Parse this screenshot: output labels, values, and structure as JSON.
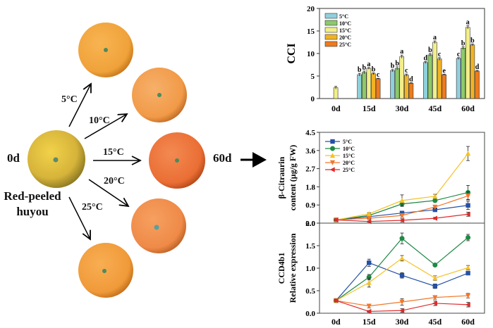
{
  "diagram": {
    "start_label": "0d",
    "end_label": "60d",
    "fruit_name_line1": "Red-peeled",
    "fruit_name_line2": "huyou",
    "treatments": [
      "5°C",
      "10°C",
      "15°C",
      "20°C",
      "25°C"
    ],
    "fruit_colors": {
      "initial": "#d6b33a",
      "5C": "#f0a23a",
      "10C": "#f19a48",
      "15C": "#ea6e34",
      "20C": "#ef8a48",
      "25C": "#f09a3a"
    }
  },
  "chart_data": [
    {
      "type": "bar",
      "title": "",
      "xlabel": "",
      "ylabel": "CCI",
      "ylim": [
        0,
        20
      ],
      "yticks": [
        0,
        5,
        10,
        15,
        20
      ],
      "categories": [
        "0d",
        "15d",
        "30d",
        "45d",
        "60d"
      ],
      "legend_position": "top-left",
      "series": [
        {
          "name": "5°C",
          "color": "#8fd0dc",
          "values": [
            null,
            5.3,
            6.2,
            8.0,
            8.9
          ],
          "errors": [
            null,
            0.3,
            0.25,
            0.2,
            0.2
          ],
          "letters": [
            null,
            "b",
            "b",
            "d",
            "c"
          ]
        },
        {
          "name": "10°C",
          "color": "#8cc96a",
          "values": [
            null,
            5.8,
            6.7,
            9.7,
            11.2
          ],
          "errors": [
            null,
            0.3,
            0.35,
            0.3,
            0.3
          ],
          "letters": [
            null,
            "b",
            "b",
            "b",
            "b"
          ]
        },
        {
          "name": "15°C",
          "color": "#f2ee8a",
          "values": [
            2.4,
            6.7,
            9.3,
            12.5,
            15.8
          ],
          "errors": [
            0.3,
            0.2,
            0.35,
            0.3,
            0.35
          ],
          "letters": [
            null,
            "a",
            "a",
            "a",
            "a"
          ]
        },
        {
          "name": "20°C",
          "color": "#f1b324",
          "values": [
            null,
            5.5,
            5.2,
            8.8,
            11.9
          ],
          "errors": [
            null,
            0.2,
            0.25,
            0.3,
            0.2
          ],
          "letters": [
            null,
            "b",
            "c",
            "c",
            "b"
          ]
        },
        {
          "name": "25°C",
          "color": "#ef7a1c",
          "values": [
            null,
            4.4,
            3.4,
            5.3,
            6.1
          ],
          "errors": [
            null,
            0.1,
            0.1,
            0.1,
            0.15
          ],
          "letters": [
            null,
            "c",
            "d",
            "e",
            "d"
          ]
        }
      ]
    },
    {
      "type": "line",
      "title": "",
      "xlabel": "",
      "ylabel_line1": "β-Citraurin",
      "ylabel_line2": "content (μg/g FW)",
      "ylim": [
        0,
        4.5
      ],
      "yticks": [
        "0.0",
        "0.9",
        "1.8",
        "2.7",
        "3.6",
        "4.5"
      ],
      "categories": [
        "0d",
        "15d",
        "30d",
        "45d",
        "60d"
      ],
      "legend_position": "top-left",
      "series": [
        {
          "name": "5°C",
          "color": "#2451a6",
          "marker": "square",
          "values": [
            0.15,
            0.32,
            0.5,
            0.66,
            0.88
          ],
          "errors": [
            0.05,
            0.05,
            0.06,
            0.05,
            0.2
          ]
        },
        {
          "name": "10°C",
          "color": "#1f8a45",
          "marker": "circle",
          "values": [
            0.16,
            0.38,
            0.95,
            1.12,
            1.52
          ],
          "errors": [
            0.05,
            0.06,
            0.12,
            0.08,
            0.35
          ]
        },
        {
          "name": "15°C",
          "color": "#f5c126",
          "marker": "triangle-up",
          "values": [
            0.16,
            0.46,
            1.12,
            1.33,
            3.45
          ],
          "errors": [
            0.05,
            0.06,
            0.28,
            0.1,
            0.35
          ]
        },
        {
          "name": "20°C",
          "color": "#f0782a",
          "marker": "triangle-down",
          "values": [
            0.16,
            0.24,
            0.38,
            0.8,
            1.35
          ],
          "errors": [
            0.05,
            0.05,
            0.08,
            0.08,
            0.2
          ]
        },
        {
          "name": "25°C",
          "color": "#e02a2a",
          "marker": "triangle-left",
          "values": [
            0.16,
            0.08,
            0.14,
            0.24,
            0.44
          ],
          "errors": [
            0.05,
            0.03,
            0.08,
            0.05,
            0.1
          ]
        }
      ]
    },
    {
      "type": "line",
      "title": "",
      "xlabel": "",
      "ylabel_line1": "CCD4b1",
      "ylabel_line2": "Relative expression",
      "ylim": [
        0,
        2.0
      ],
      "yticks": [
        "0.0",
        "0.5",
        "1.0",
        "1.5",
        "2.0"
      ],
      "categories": [
        "0d",
        "15d",
        "30d",
        "45d",
        "60d"
      ],
      "series": [
        {
          "name": "5°C",
          "color": "#2451a6",
          "marker": "square",
          "values": [
            0.28,
            1.12,
            0.84,
            0.6,
            0.89
          ],
          "errors": [
            0.03,
            0.08,
            0.06,
            0.05,
            0.04
          ]
        },
        {
          "name": "10°C",
          "color": "#1f8a45",
          "marker": "circle",
          "values": [
            0.28,
            0.8,
            1.66,
            1.07,
            1.68
          ],
          "errors": [
            0.03,
            0.06,
            0.12,
            0.02,
            0.07
          ]
        },
        {
          "name": "15°C",
          "color": "#f5c126",
          "marker": "triangle-up",
          "values": [
            0.28,
            0.68,
            1.22,
            0.78,
            1.01
          ],
          "errors": [
            0.03,
            0.1,
            0.06,
            0.05,
            0.05
          ]
        },
        {
          "name": "20°C",
          "color": "#f0782a",
          "marker": "triangle-down",
          "values": [
            0.28,
            0.16,
            0.25,
            0.35,
            0.39
          ],
          "errors": [
            0.03,
            0.04,
            0.07,
            0.04,
            0.05
          ]
        },
        {
          "name": "25°C",
          "color": "#e02a2a",
          "marker": "triangle-left",
          "values": [
            0.28,
            0.04,
            0.06,
            0.22,
            0.19
          ],
          "errors": [
            0.03,
            0.02,
            0.04,
            0.05,
            0.05
          ]
        }
      ]
    }
  ]
}
